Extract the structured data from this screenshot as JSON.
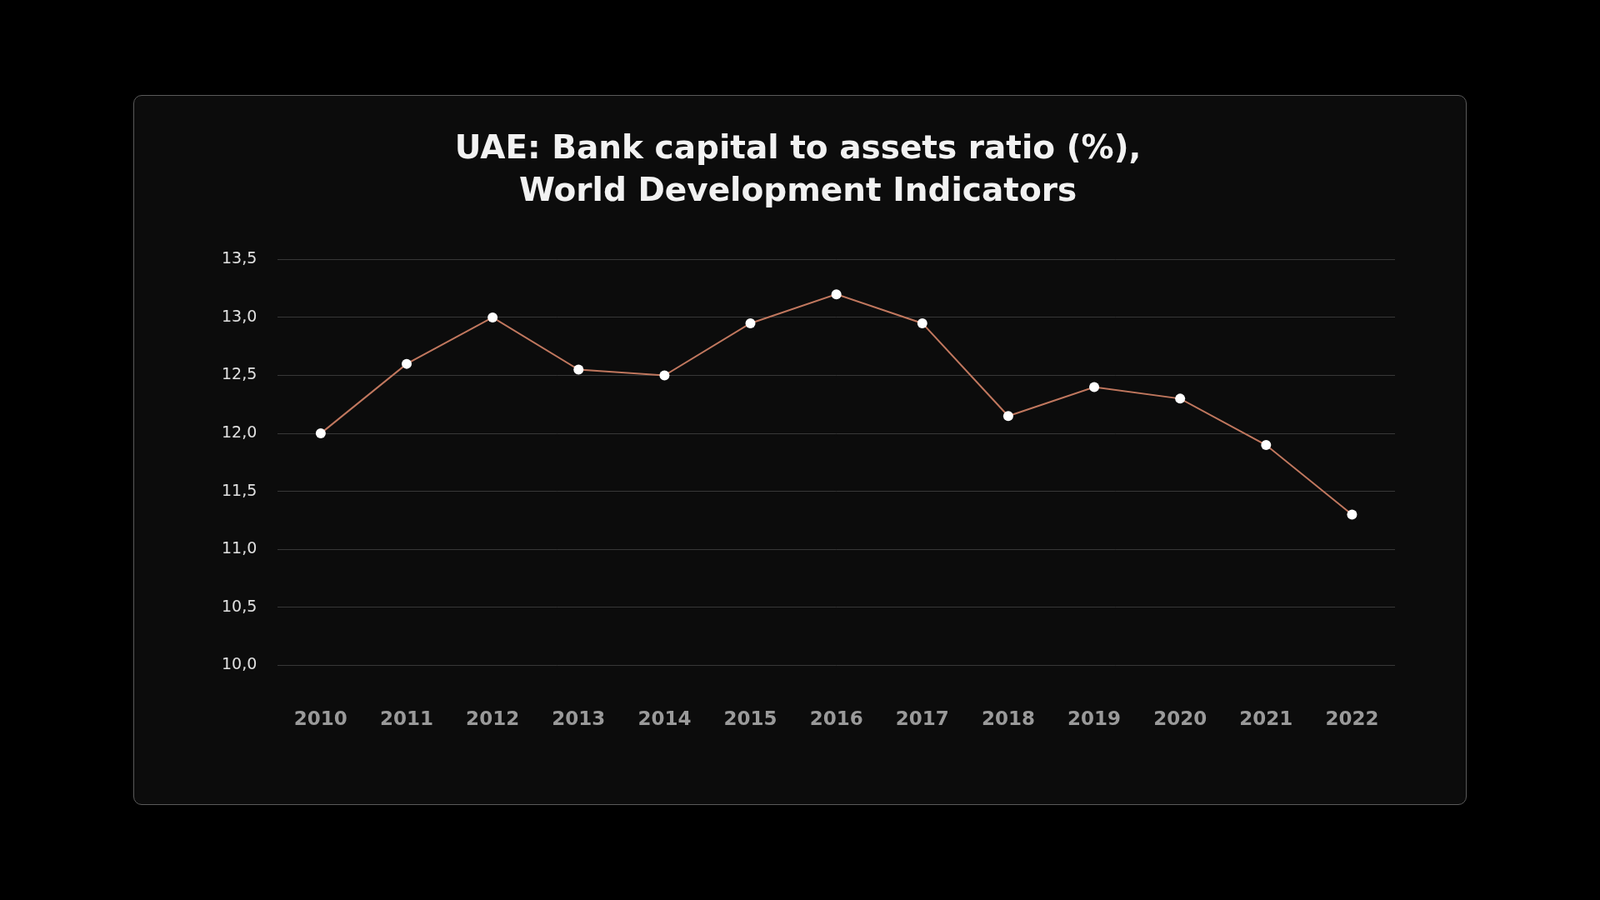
{
  "chart_data": {
    "type": "line",
    "title": [
      "UAE: Bank capital to assets ratio (%),",
      "World Development Indicators"
    ],
    "categories": [
      "2010",
      "2011",
      "2012",
      "2013",
      "2014",
      "2015",
      "2016",
      "2017",
      "2018",
      "2019",
      "2020",
      "2021",
      "2022"
    ],
    "values": [
      12.0,
      12.6,
      13.0,
      12.55,
      12.5,
      12.95,
      13.2,
      12.95,
      12.15,
      12.4,
      12.3,
      11.9,
      11.3
    ],
    "color": "#c0775e",
    "marker": "circle",
    "ylim": [
      10.0,
      13.5
    ],
    "yticks": [
      {
        "value": 10.0,
        "label": "10,0"
      },
      {
        "value": 10.5,
        "label": "10,5"
      },
      {
        "value": 11.0,
        "label": "11,0"
      },
      {
        "value": 11.5,
        "label": "11,5"
      },
      {
        "value": 12.0,
        "label": "12,0"
      },
      {
        "value": 12.5,
        "label": "12,5"
      },
      {
        "value": 13.0,
        "label": "13,0"
      },
      {
        "value": 13.5,
        "label": "13,5"
      }
    ],
    "grid": true
  }
}
